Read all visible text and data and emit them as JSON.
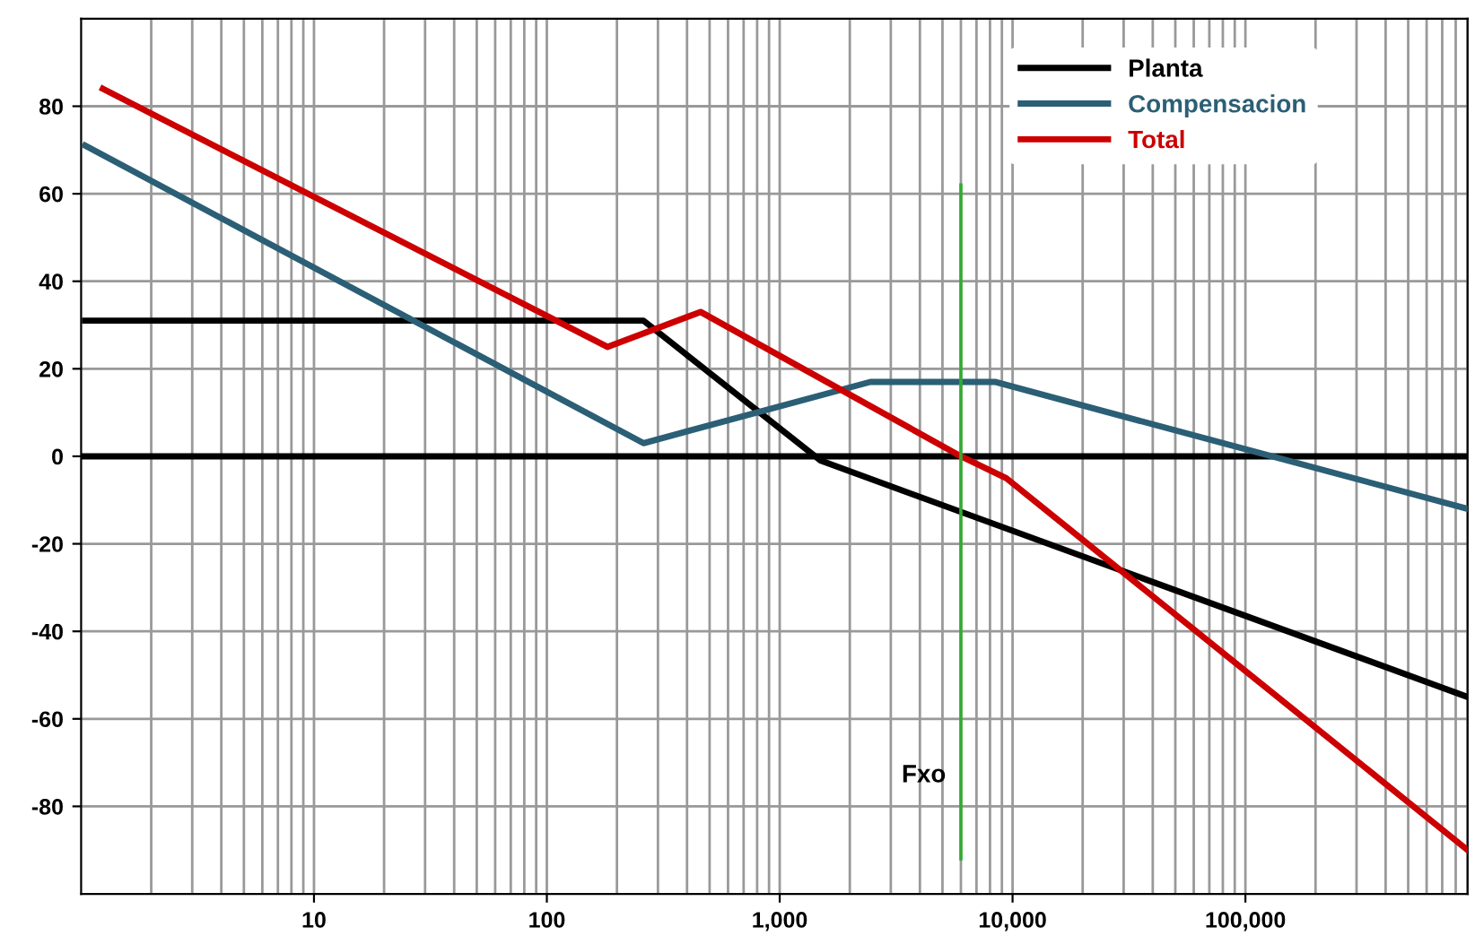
{
  "chart_data": {
    "type": "line",
    "log": "x",
    "grid": true,
    "legend": "top right",
    "xlim": [
      1,
      900000
    ],
    "ylim": [
      -100,
      100
    ],
    "xticks": [
      {
        "value": 10,
        "label": "10"
      },
      {
        "value": 100,
        "label": "100"
      },
      {
        "value": 1000,
        "label": "1,000"
      },
      {
        "value": 10000,
        "label": "10,000"
      },
      {
        "value": 100000,
        "label": "100,000"
      }
    ],
    "yticks": [
      -80,
      -60,
      -40,
      -20,
      0,
      20,
      40,
      60,
      80
    ],
    "series": [
      {
        "name": "Planta",
        "color": "#000000",
        "x": [
          1.04,
          260,
          1500,
          900000
        ],
        "values": [
          31,
          31,
          -1,
          -55
        ]
      },
      {
        "name": "Compensacion",
        "color": "#2b5f75",
        "x": [
          1.04,
          260,
          2450,
          8400,
          900000
        ],
        "values": [
          71,
          3,
          17,
          17,
          -12
        ]
      },
      {
        "name": "Total",
        "color": "#cc0000",
        "x": [
          1.24,
          182,
          457,
          6000,
          9400,
          900000
        ],
        "values": [
          84,
          25,
          33,
          0,
          -5,
          -90
        ]
      },
      {
        "color": "#33aa33",
        "x": [
          6000,
          6000
        ],
        "values": [
          62,
          -92
        ]
      }
    ],
    "ref_lines": [
      {
        "axis": "y",
        "value": 0,
        "color": "#000000"
      }
    ],
    "annotations": [
      {
        "text": "Fxo",
        "x": 6000,
        "y": -73
      }
    ]
  }
}
